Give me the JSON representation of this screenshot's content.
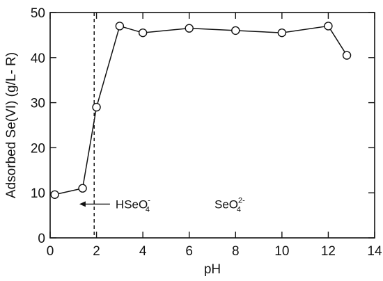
{
  "chart_data": {
    "type": "scatter",
    "xlabel": "pH",
    "ylabel": "Adsorbed Se(VI) (g/L- R)",
    "xlim": [
      0,
      14
    ],
    "ylim": [
      0,
      50
    ],
    "xticks": [
      "0",
      "2",
      "4",
      "6",
      "8",
      "10",
      "12",
      "14"
    ],
    "yticks": [
      "0",
      "10",
      "20",
      "30",
      "40",
      "50"
    ],
    "grid": false,
    "legend": "none",
    "series": [
      {
        "x": [
          0.2,
          1.4,
          2.0,
          3.0,
          4.0,
          6.0,
          8.0,
          10.0,
          12.0,
          12.8
        ],
        "y": [
          9.6,
          11.0,
          29.0,
          47.0,
          45.5,
          46.5,
          46.0,
          45.5,
          47.0,
          40.5
        ],
        "marker": "open-circle",
        "line": "solid"
      }
    ],
    "vline": {
      "x": 1.9,
      "style": "dashed"
    },
    "annotations": {
      "left": {
        "text": "HSeO",
        "sup": "-",
        "sub": "4",
        "arrow": "left",
        "x": 1.5,
        "y": 7.5
      },
      "right": {
        "text": "SeO",
        "sup": "2-",
        "sub": "4",
        "x": 7.0,
        "y": 7.5
      }
    }
  }
}
